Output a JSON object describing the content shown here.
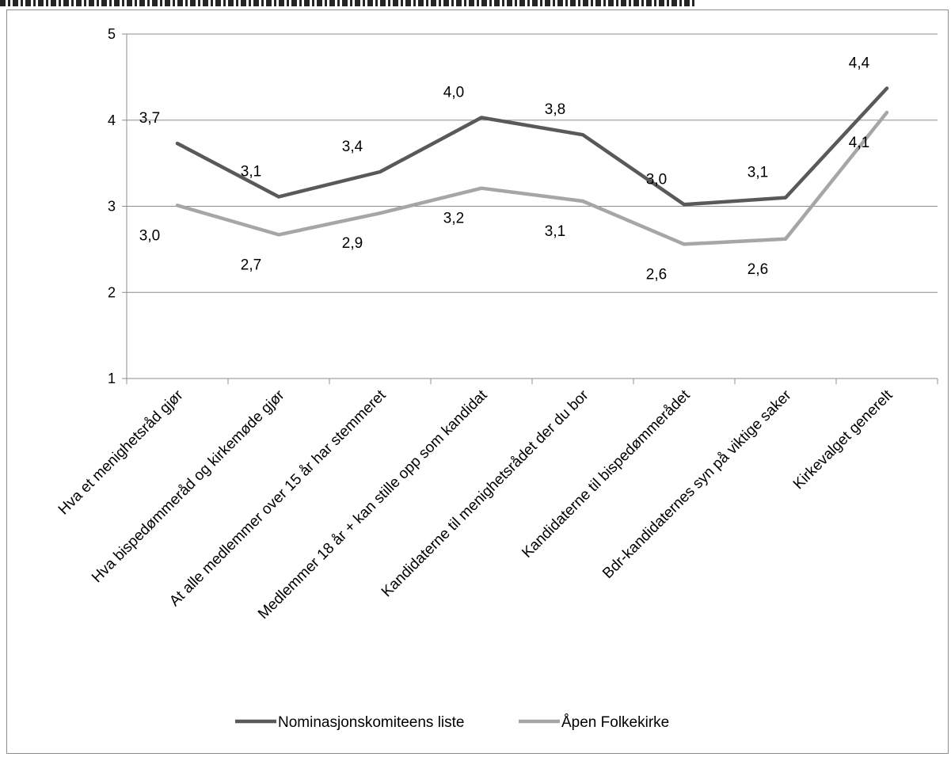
{
  "chart_data": {
    "type": "line",
    "categories": [
      "Hva et menighetsråd gjør",
      "Hva bispedømmeråd og kirkemøde gjør",
      "At alle medlemmer over 15 år har stemmeret",
      "Medlemmer 18 år + kan stille opp som kandidat",
      "Kandidaterne til menighetsrådet der du bor",
      "Kandidaterne til bispedømmerådet",
      "Bdr-kandidaternes syn på viktige saker",
      "Kirkevalget generelt"
    ],
    "series": [
      {
        "name": "Nominasjonskomiteens liste",
        "values": [
          3.73,
          3.11,
          3.4,
          4.03,
          3.83,
          3.02,
          3.1,
          4.37
        ],
        "labels": [
          "3,7",
          "3,1",
          "3,4",
          "4,0",
          "3,8",
          "3,0",
          "3,1",
          "4,4"
        ],
        "color": "#595959",
        "label_position": "above"
      },
      {
        "name": "Åpen Folkekirke",
        "values": [
          3.01,
          2.67,
          2.92,
          3.21,
          3.06,
          2.56,
          2.62,
          4.09
        ],
        "labels": [
          "3,0",
          "2,7",
          "2,9",
          "3,2",
          "3,1",
          "2,6",
          "2,6",
          "4,1"
        ],
        "color": "#a6a6a6",
        "label_position": "below"
      }
    ],
    "ylim": [
      1,
      5
    ],
    "yticks": [
      "1",
      "2",
      "3",
      "4",
      "5"
    ],
    "title": "",
    "xlabel": "",
    "ylabel": "",
    "grid": true,
    "legend_position": "bottom"
  }
}
